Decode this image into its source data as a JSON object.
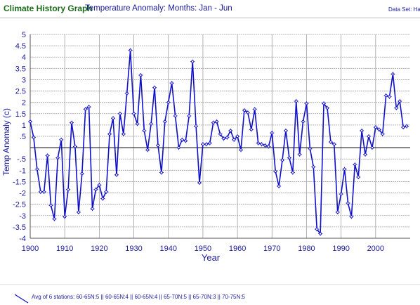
{
  "header": {
    "app_title": "Climate History Graph",
    "chart_title": "Temperature Anomaly: Months: Jan - Jun",
    "dataset_label": "Data Set: Ha"
  },
  "legend": {
    "label": "Avg of 6 stations: 60-65N:5 || 60-65N:4 || 60-65N:4 || 65-70N:5 || 65-70N:3 || 70-75N:5"
  },
  "colors": {
    "series": "#1010c8",
    "grid": "#a0a0a0",
    "axis_text": "#1a1a9c",
    "app_title": "#1c6b1c"
  },
  "chart_data": {
    "type": "line",
    "title": "Temperature Anomaly: Months: Jan - Jun",
    "xlabel": "Year",
    "ylabel": "Temp Anomaly (c)",
    "xlim": [
      1900,
      2010
    ],
    "ylim": [
      -4,
      5
    ],
    "grid": true,
    "legend_position": "bottom-left",
    "x_ticks": [
      "1900",
      "1910",
      "1920",
      "1930",
      "1940",
      "1950",
      "1960",
      "1970",
      "1980",
      "1990",
      "2000"
    ],
    "y_ticks": [
      "5",
      "4.5",
      "4",
      "3.5",
      "3",
      "2.5",
      "2",
      "1.5",
      "1",
      ".5",
      "",
      "-.5",
      "-1",
      "-1.5",
      "-2",
      "-2.5",
      "-3",
      "-3.5",
      "-4"
    ],
    "series": [
      {
        "name": "Avg of 6 stations: 60-65N:5 || 60-65N:4 || 60-65N:4 || 65-70N:5 || 65-70N:3 || 70-75N:5",
        "x": [
          1900,
          1901,
          1902,
          1903,
          1904,
          1905,
          1906,
          1907,
          1908,
          1909,
          1910,
          1911,
          1912,
          1913,
          1914,
          1915,
          1916,
          1917,
          1918,
          1919,
          1920,
          1921,
          1922,
          1923,
          1924,
          1925,
          1926,
          1927,
          1928,
          1929,
          1930,
          1931,
          1932,
          1933,
          1934,
          1935,
          1936,
          1937,
          1938,
          1939,
          1940,
          1941,
          1942,
          1943,
          1944,
          1945,
          1946,
          1947,
          1948,
          1949,
          1950,
          1951,
          1952,
          1953,
          1954,
          1955,
          1956,
          1957,
          1958,
          1959,
          1960,
          1961,
          1962,
          1963,
          1964,
          1965,
          1966,
          1967,
          1968,
          1969,
          1970,
          1971,
          1972,
          1973,
          1974,
          1975,
          1976,
          1977,
          1978,
          1979,
          1980,
          1981,
          1982,
          1983,
          1984,
          1985,
          1986,
          1987,
          1988,
          1989,
          1990,
          1991,
          1992,
          1993,
          1994,
          1995,
          1996,
          1997,
          1998,
          1999,
          2000,
          2001,
          2002,
          2003,
          2004,
          2005,
          2006,
          2007,
          2008,
          2009
        ],
        "values": [
          1.15,
          0.45,
          -0.95,
          -1.95,
          -1.95,
          -0.35,
          -2.55,
          -3.15,
          -0.45,
          0.35,
          -3.05,
          -1.85,
          1.1,
          0.05,
          -2.85,
          -1.15,
          1.7,
          1.8,
          -2.7,
          -1.85,
          -1.65,
          -2.25,
          -1.95,
          0.6,
          1.3,
          -1.2,
          1.5,
          0.6,
          2.4,
          4.3,
          1.5,
          1.05,
          3.2,
          0.75,
          -0.1,
          1.05,
          2.65,
          0.1,
          -1.1,
          1.15,
          2.0,
          2.85,
          1.4,
          0.0,
          0.35,
          0.3,
          1.4,
          3.8,
          0.95,
          -1.55,
          0.15,
          0.15,
          0.2,
          1.1,
          1.15,
          0.6,
          0.4,
          0.45,
          0.75,
          0.35,
          0.5,
          -0.1,
          1.65,
          1.55,
          0.8,
          1.7,
          0.2,
          0.15,
          0.1,
          0.05,
          0.65,
          -1.05,
          -1.7,
          -0.55,
          0.75,
          -0.45,
          -1.1,
          2.05,
          -0.3,
          1.15,
          1.95,
          -0.05,
          -0.85,
          -3.6,
          -3.8,
          1.95,
          1.75,
          0.25,
          0.15,
          -2.85,
          -2.05,
          -0.95,
          -2.45,
          -3.05,
          -0.75,
          -1.3,
          0.75,
          -0.3,
          0.5,
          0.0,
          0.9,
          0.8,
          0.6,
          2.3,
          2.25,
          3.25,
          1.75,
          2.05,
          0.9,
          0.95
        ]
      }
    ]
  }
}
